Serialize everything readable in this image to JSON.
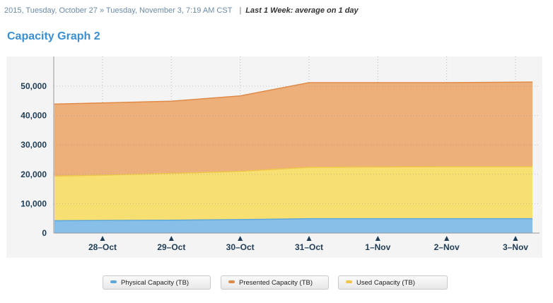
{
  "header": {
    "range_text": "2015, Tuesday, October 27 » Tuesday, November 3, 7:19 AM CST",
    "separator": "|",
    "window_text": "Last 1 Week: average on 1 day"
  },
  "colors": {
    "physical": "#87bfe8",
    "physical_line": "#5fa7da",
    "used": "#f7df72",
    "used_line": "#efc64a",
    "presented": "#eeb07a",
    "presented_line": "#e08a48",
    "plot_bg": "#f4f4f4",
    "axis_text": "#1f3c56"
  },
  "chart_data": {
    "type": "area",
    "title": "Capacity Graph 2",
    "xlabel": "",
    "ylabel": "",
    "categories": [
      "28–Oct",
      "29–Oct",
      "30–Oct",
      "31–Oct",
      "1–Nov",
      "2–Nov",
      "3–Nov"
    ],
    "ylim": [
      0,
      56000
    ],
    "yticks": [
      0,
      10000,
      20000,
      30000,
      40000,
      50000
    ],
    "ytick_labels": [
      "0",
      "10,000",
      "20,000",
      "30,000",
      "40,000",
      "50,000"
    ],
    "x": [
      -0.7,
      0,
      1,
      2,
      3,
      4,
      5,
      6.25
    ],
    "series": [
      {
        "name": "Physical Capacity (TB)",
        "values": [
          4200,
          4300,
          4400,
          4600,
          4900,
          4900,
          4900,
          4900
        ]
      },
      {
        "name": "Used Capacity (TB)",
        "values": [
          19400,
          19700,
          20300,
          21000,
          22400,
          22500,
          22600,
          22600
        ]
      },
      {
        "name": "Presented Capacity (TB)",
        "values": [
          43900,
          44300,
          44900,
          46700,
          51200,
          51200,
          51200,
          51400
        ]
      }
    ],
    "legend_position": "bottom",
    "grid": true
  },
  "legend": [
    {
      "label": "Physical Capacity (TB)",
      "color": "#5fa7da"
    },
    {
      "label": "Presented Capacity (TB)",
      "color": "#e08a48"
    },
    {
      "label": "Used Capacity (TB)",
      "color": "#efc64a"
    }
  ]
}
